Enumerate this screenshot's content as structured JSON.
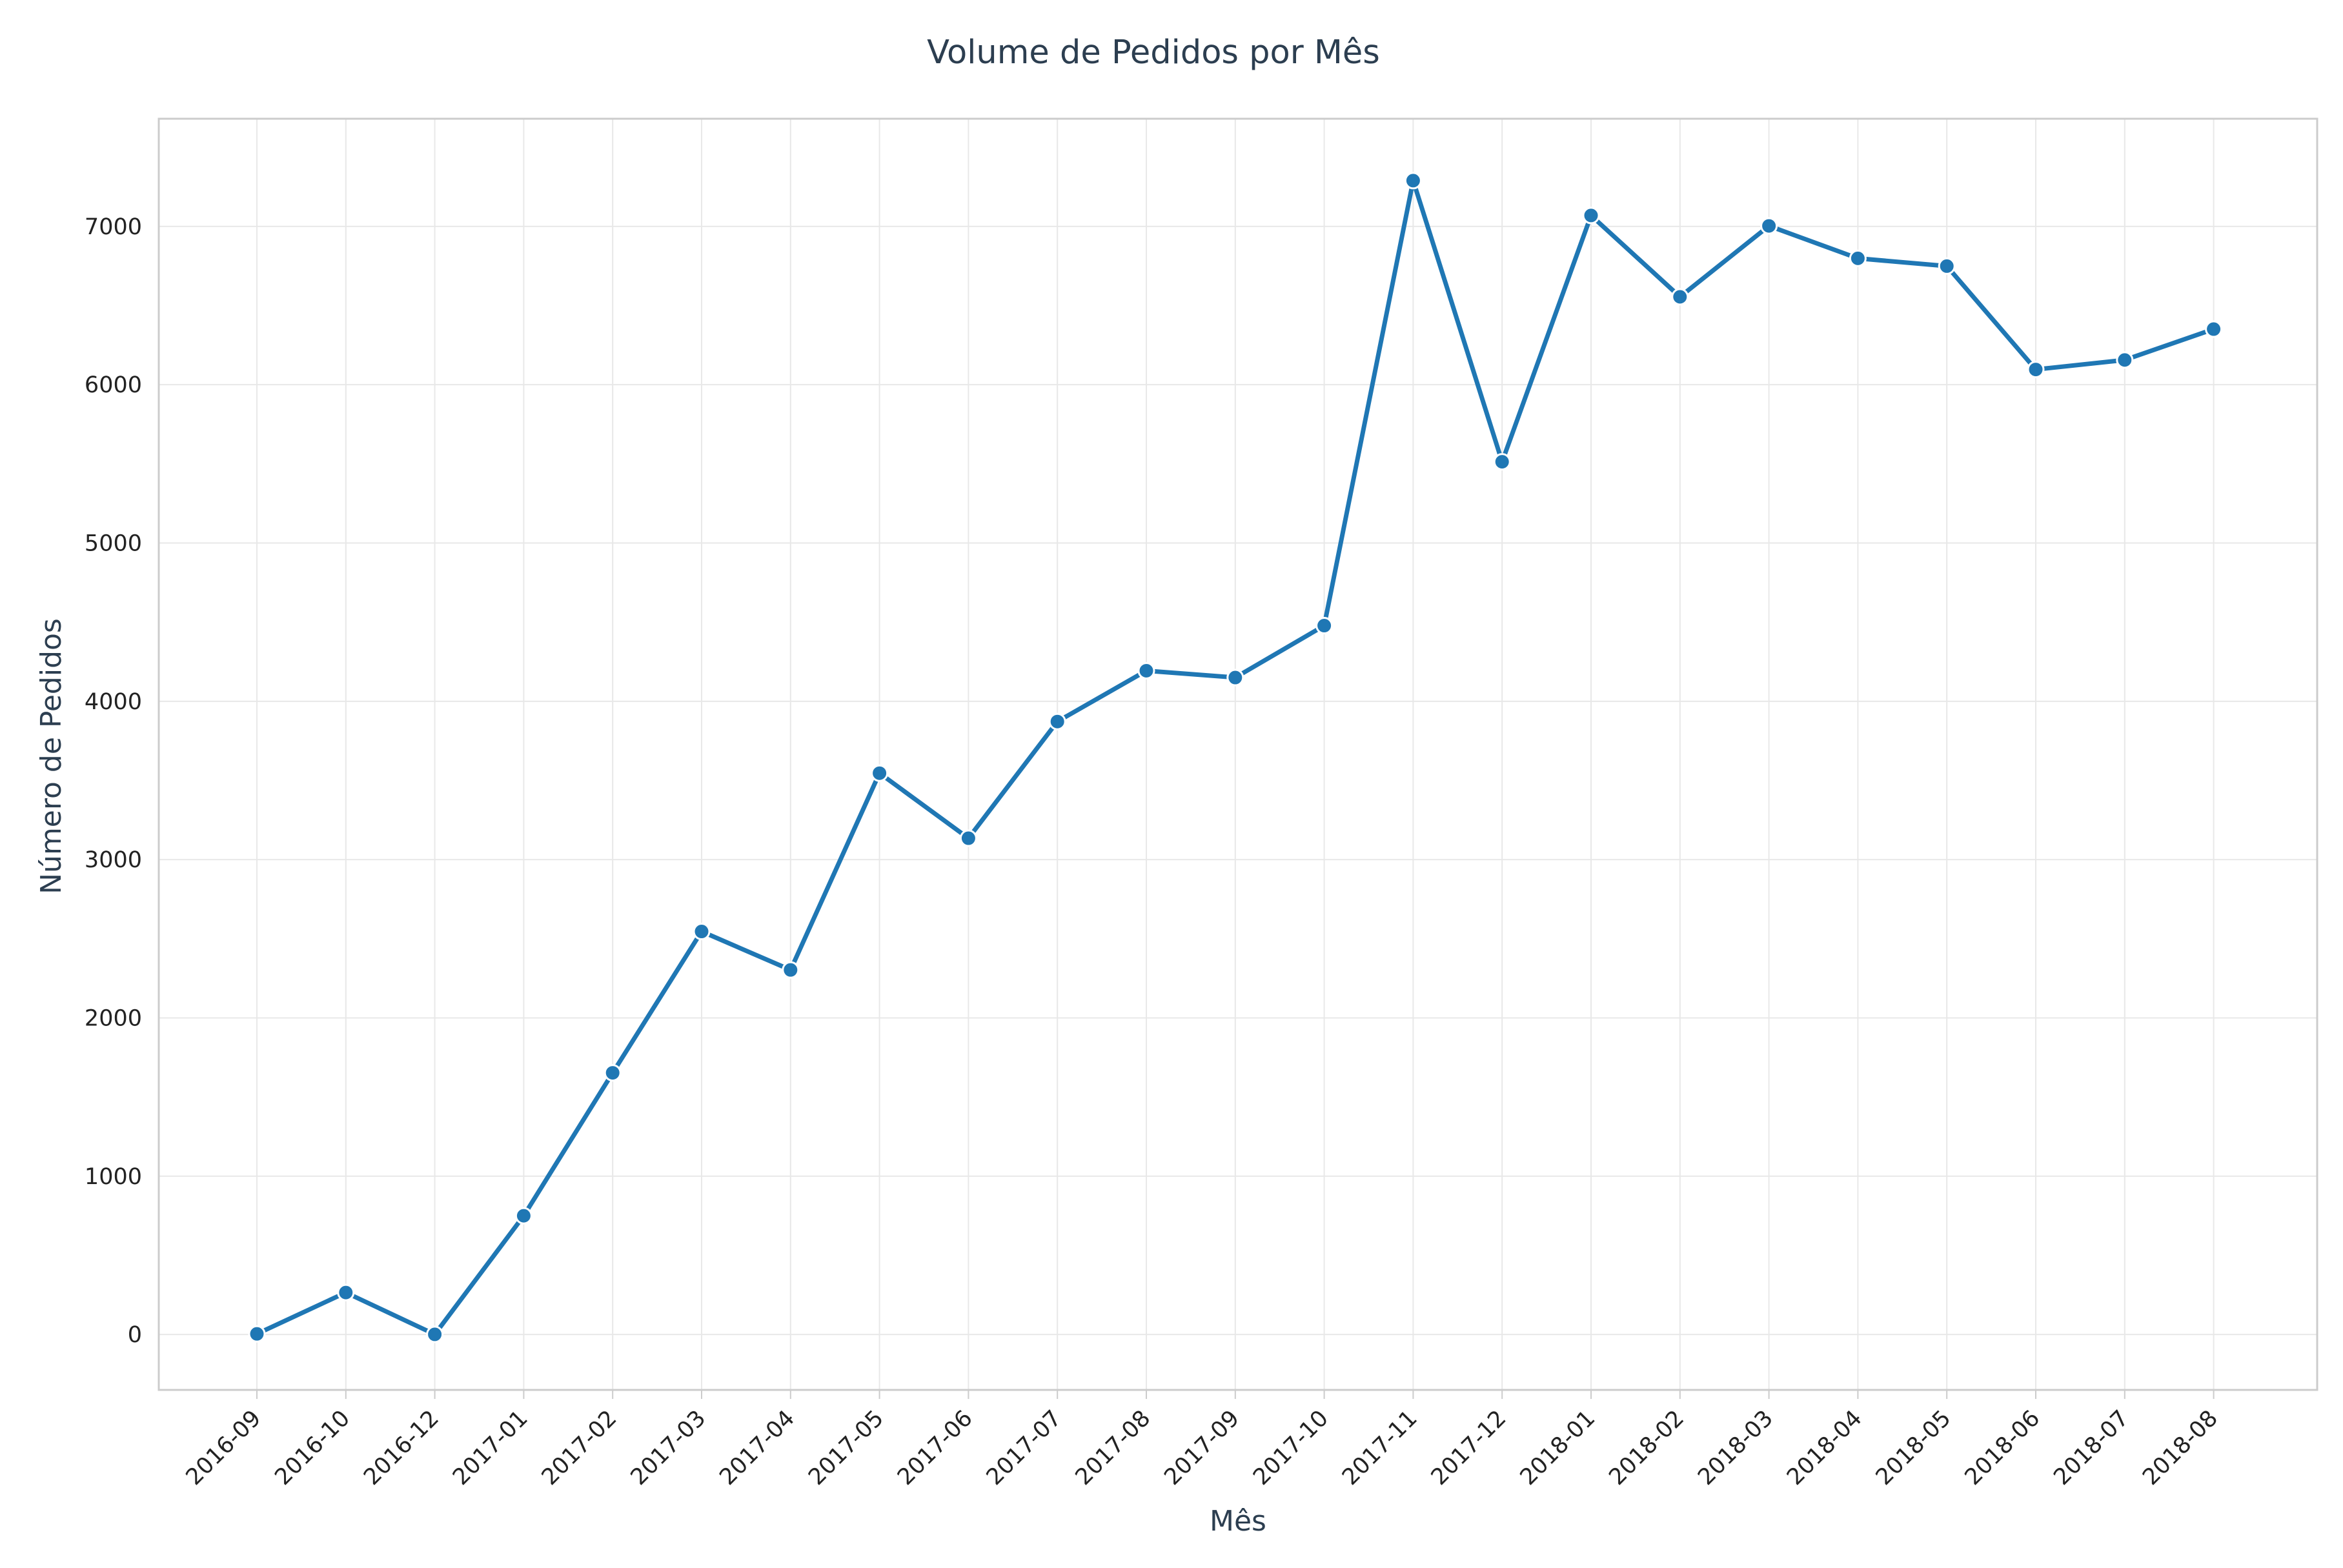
{
  "chart_data": {
    "type": "line",
    "title": "Volume de Pedidos por Mês",
    "xlabel": "Mês",
    "ylabel": "Número de Pedidos",
    "ylim": [
      -350,
      7680
    ],
    "yticks": [
      0,
      1000,
      2000,
      3000,
      4000,
      5000,
      6000,
      7000
    ],
    "grid": true,
    "colors": {
      "line": "#1f77b4",
      "marker_edge": "#ffffff"
    },
    "categories": [
      "2016-09",
      "2016-10",
      "2016-12",
      "2017-01",
      "2017-02",
      "2017-03",
      "2017-04",
      "2017-05",
      "2017-06",
      "2017-07",
      "2017-08",
      "2017-09",
      "2017-10",
      "2017-11",
      "2017-12",
      "2018-01",
      "2018-02",
      "2018-03",
      "2018-04",
      "2018-05",
      "2018-06",
      "2018-07",
      "2018-08"
    ],
    "series": [
      {
        "name": "",
        "values": [
          4,
          265,
          1,
          750,
          1653,
          2546,
          2303,
          3546,
          3135,
          3872,
          4193,
          4150,
          4478,
          7289,
          5513,
          7069,
          6555,
          7003,
          6798,
          6749,
          6096,
          6156,
          6351
        ]
      }
    ]
  }
}
